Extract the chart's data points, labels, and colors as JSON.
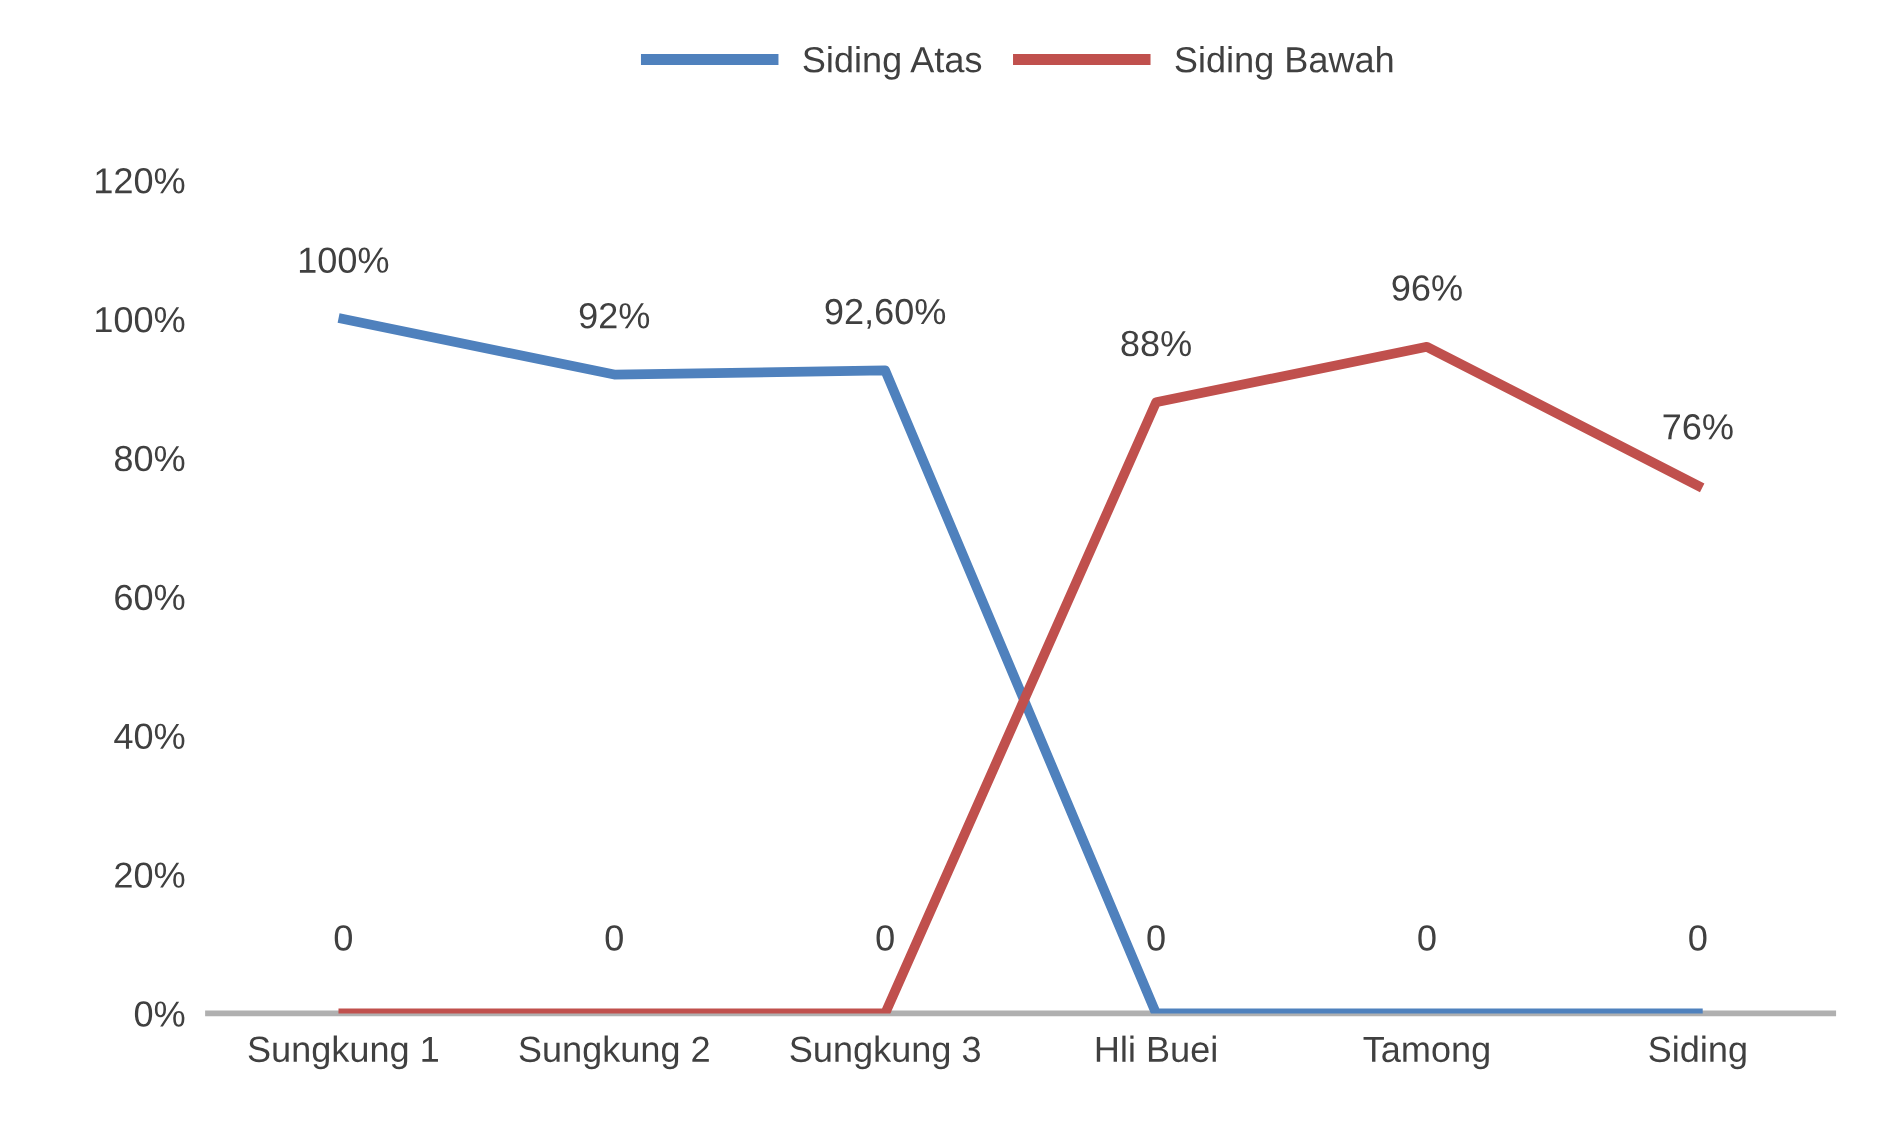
{
  "chart_data": {
    "type": "line",
    "categories": [
      "Sungkung 1",
      "Sungkung 2",
      "Sungkung 3",
      "Hli Buei",
      "Tamong",
      "Siding"
    ],
    "series": [
      {
        "name": "Siding Atas",
        "color": "#4f81bd",
        "values": [
          100,
          92,
          92.6,
          0,
          0,
          0
        ],
        "value_labels": [
          "100%",
          "92%",
          "92,60%",
          "0",
          "0",
          "0"
        ]
      },
      {
        "name": "Siding Bawah",
        "color": "#c0504d",
        "values": [
          0,
          0,
          0,
          88,
          96,
          76
        ],
        "value_labels": [
          "0",
          "0",
          "0",
          "88%",
          "96%",
          "76%"
        ]
      }
    ],
    "ylim": [
      0,
      120
    ],
    "yticks": [
      {
        "value": 0,
        "label": "0%"
      },
      {
        "value": 20,
        "label": "20%"
      },
      {
        "value": 40,
        "label": "40%"
      },
      {
        "value": 60,
        "label": "60%"
      },
      {
        "value": 80,
        "label": "80%"
      },
      {
        "value": 100,
        "label": "100%"
      },
      {
        "value": 120,
        "label": "120%"
      }
    ],
    "grid": false,
    "legend": "top",
    "marker": "none",
    "line_style": "solid"
  }
}
